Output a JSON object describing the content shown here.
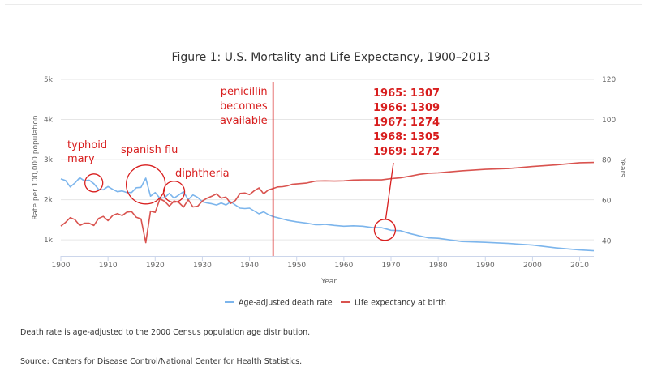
{
  "chart_data": {
    "type": "line",
    "title": "Figure 1: U.S. Mortality and Life Expectancy, 1900–2013",
    "xlabel": "Year",
    "ylabel_left": "Rate per 100,000 population",
    "ylabel_right": "Years",
    "xlim": [
      1900,
      2013
    ],
    "ylim_left": [
      600,
      5000
    ],
    "ylim_right": [
      32.5,
      120
    ],
    "x_ticks": [
      1900,
      1910,
      1920,
      1930,
      1940,
      1950,
      1960,
      1970,
      1980,
      1990,
      2000,
      2010
    ],
    "y_left_ticks": [
      {
        "value": 1000,
        "label": "1k"
      },
      {
        "value": 2000,
        "label": "2k"
      },
      {
        "value": 3000,
        "label": "3k"
      },
      {
        "value": 4000,
        "label": "4k"
      },
      {
        "value": 5000,
        "label": "5k"
      }
    ],
    "y_right_ticks": [
      {
        "value": 40,
        "label": "40"
      },
      {
        "value": 60,
        "label": "60"
      },
      {
        "value": 80,
        "label": "80"
      },
      {
        "value": 100,
        "label": "100"
      },
      {
        "value": 120,
        "label": "120"
      }
    ],
    "grid": "horizontal",
    "legend_position": "bottom",
    "series": [
      {
        "name": "Age-adjusted death rate",
        "axis": "left",
        "color": "#7cb5ec",
        "x": [
          1900,
          1901,
          1902,
          1903,
          1904,
          1905,
          1906,
          1907,
          1908,
          1909,
          1910,
          1911,
          1912,
          1913,
          1914,
          1915,
          1916,
          1917,
          1918,
          1919,
          1920,
          1921,
          1922,
          1923,
          1924,
          1925,
          1926,
          1927,
          1928,
          1929,
          1930,
          1931,
          1932,
          1933,
          1934,
          1935,
          1936,
          1937,
          1938,
          1939,
          1940,
          1941,
          1942,
          1943,
          1944,
          1945,
          1946,
          1947,
          1948,
          1949,
          1950,
          1952,
          1954,
          1955,
          1956,
          1958,
          1960,
          1962,
          1964,
          1966,
          1968,
          1969,
          1970,
          1972,
          1974,
          1976,
          1978,
          1980,
          1985,
          1990,
          1995,
          2000,
          2005,
          2010,
          2013
        ],
        "values": [
          2520,
          2480,
          2320,
          2420,
          2550,
          2470,
          2490,
          2400,
          2260,
          2250,
          2330,
          2260,
          2200,
          2220,
          2180,
          2180,
          2300,
          2310,
          2540,
          2090,
          2180,
          2040,
          2050,
          2160,
          2040,
          2120,
          2200,
          2000,
          2120,
          2060,
          1950,
          1920,
          1900,
          1870,
          1920,
          1870,
          1950,
          1870,
          1790,
          1780,
          1790,
          1720,
          1650,
          1700,
          1630,
          1580,
          1550,
          1520,
          1490,
          1470,
          1450,
          1420,
          1380,
          1380,
          1390,
          1360,
          1340,
          1350,
          1340,
          1309,
          1305,
          1272,
          1240,
          1230,
          1160,
          1100,
          1050,
          1040,
          960,
          940,
          910,
          870,
          800,
          750,
          730
        ]
      },
      {
        "name": "Life expectancy at birth",
        "axis": "right",
        "color": "#d9534f",
        "x": [
          1900,
          1901,
          1902,
          1903,
          1904,
          1905,
          1906,
          1907,
          1908,
          1909,
          1910,
          1911,
          1912,
          1913,
          1914,
          1915,
          1916,
          1917,
          1918,
          1919,
          1920,
          1921,
          1922,
          1923,
          1924,
          1925,
          1926,
          1927,
          1928,
          1929,
          1930,
          1931,
          1932,
          1933,
          1934,
          1935,
          1936,
          1937,
          1938,
          1939,
          1940,
          1941,
          1942,
          1943,
          1944,
          1945,
          1946,
          1947,
          1948,
          1949,
          1950,
          1952,
          1954,
          1956,
          1958,
          1960,
          1962,
          1964,
          1966,
          1968,
          1970,
          1972,
          1974,
          1976,
          1978,
          1980,
          1985,
          1990,
          1995,
          2000,
          2005,
          2010,
          2013
        ],
        "values": [
          47.3,
          49.1,
          51.5,
          50.5,
          47.6,
          48.7,
          48.7,
          47.6,
          51.1,
          52.1,
          50.0,
          52.6,
          53.5,
          52.5,
          54.2,
          54.5,
          51.7,
          50.9,
          39.1,
          54.7,
          54.1,
          60.8,
          59.6,
          57.2,
          59.7,
          59.0,
          56.7,
          60.4,
          56.8,
          57.1,
          59.7,
          61.1,
          62.1,
          63.3,
          61.1,
          61.7,
          58.5,
          60.0,
          63.5,
          63.7,
          62.9,
          64.8,
          66.2,
          63.3,
          65.2,
          65.9,
          66.7,
          66.8,
          67.2,
          68.0,
          68.2,
          68.6,
          69.6,
          69.7,
          69.6,
          69.7,
          70.1,
          70.2,
          70.2,
          70.2,
          70.8,
          71.2,
          72.0,
          72.9,
          73.5,
          73.7,
          74.7,
          75.4,
          75.8,
          76.8,
          77.6,
          78.7,
          78.8
        ]
      }
    ],
    "markers": [
      {
        "x": 1945,
        "label_lines": [
          "penicillin",
          "becomes",
          "available"
        ]
      }
    ],
    "annotations": [
      {
        "x": 1907,
        "value": 2420,
        "lines": [
          "typhoid",
          "mary"
        ]
      },
      {
        "x": 1918,
        "value": 2380,
        "lines": [
          "spanish flu"
        ]
      },
      {
        "x": 1924,
        "value": 2200,
        "lines": [
          "diphtheria"
        ]
      },
      {
        "x": 1968.7,
        "value": 1250,
        "lines": [
          "1965: 1307",
          "1966: 1309",
          "1967: 1274",
          "1968: 1305",
          "1969: 1272"
        ]
      }
    ],
    "colors": {
      "annotation": "#d81e1e",
      "grid": "#e6e6e6"
    }
  },
  "notes": {
    "line1": "Death rate is age-adjusted to the 2000 Census population age distribution.",
    "line2": "Source: Centers for Disease Control/National Center for Health Statistics."
  }
}
